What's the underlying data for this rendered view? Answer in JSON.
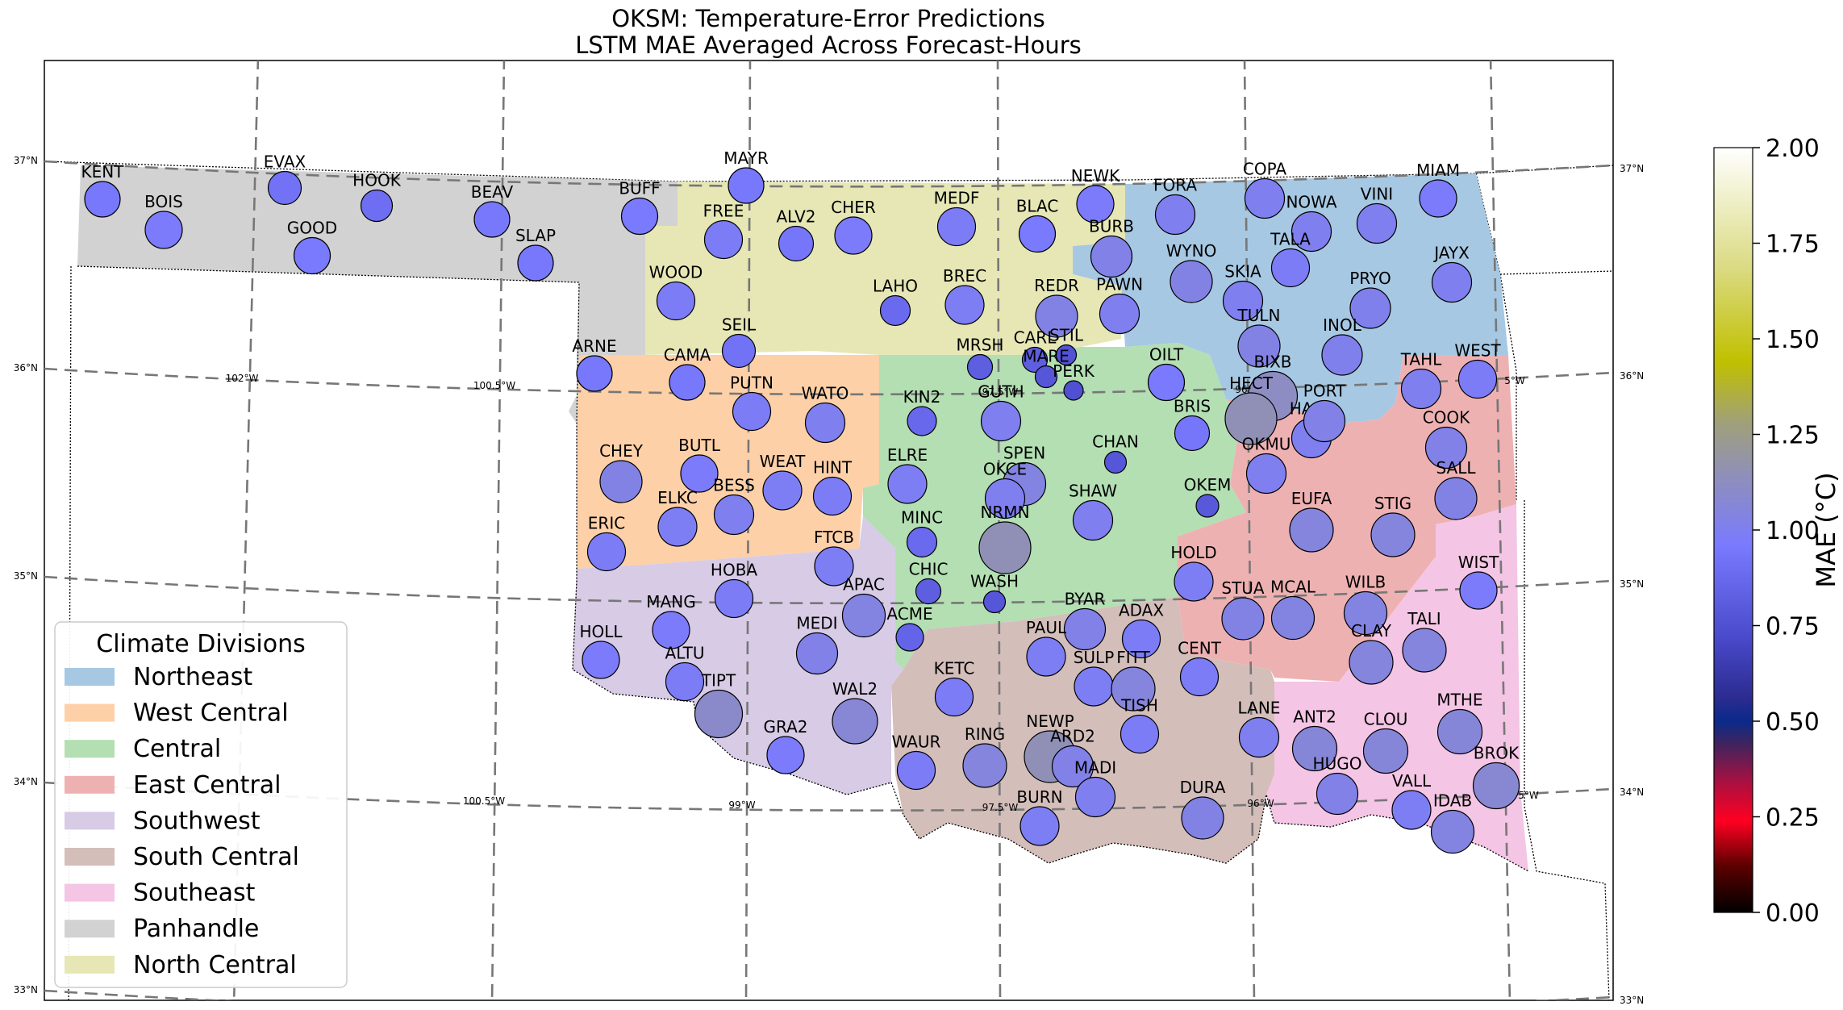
{
  "title": {
    "line1": "OKSM: Temperature-Error Predictions",
    "line2": "LSTM MAE Averaged Across Forecast-Hours"
  },
  "grid_labels": {
    "lat": [
      "37°N",
      "36°N",
      "35°N",
      "34°N",
      "33°N"
    ],
    "lon": [
      "102°W",
      "100.5°W",
      "99°W",
      "97.5°W",
      "96°W",
      "5°W"
    ]
  },
  "legend": {
    "title": "Climate Divisions",
    "items": [
      {
        "label": "Northeast",
        "color": "#a6c8e3"
      },
      {
        "label": "West Central",
        "color": "#fdd0a8"
      },
      {
        "label": "Central",
        "color": "#b3dfb3"
      },
      {
        "label": "East Central",
        "color": "#eeb1b2"
      },
      {
        "label": "Southwest",
        "color": "#d7cbe6"
      },
      {
        "label": "South Central",
        "color": "#d3beba"
      },
      {
        "label": "Southeast",
        "color": "#f4c5e4"
      },
      {
        "label": "Panhandle",
        "color": "#d2d2d2"
      },
      {
        "label": "North Central",
        "color": "#e6e7b5"
      }
    ]
  },
  "colorbar": {
    "label": "MAE (°C)",
    "min": 0,
    "max": 2,
    "ticks": [
      "0.00",
      "0.25",
      "0.50",
      "0.75",
      "1.00",
      "1.25",
      "1.50",
      "1.75",
      "2.00"
    ]
  },
  "stations": [
    {
      "name": "KENT",
      "mae": 0.95
    },
    {
      "name": "BOIS",
      "mae": 0.97
    },
    {
      "name": "EVAX",
      "mae": 0.92
    },
    {
      "name": "GOOD",
      "mae": 0.96
    },
    {
      "name": "HOOK",
      "mae": 0.9
    },
    {
      "name": "BEAV",
      "mae": 0.95
    },
    {
      "name": "SLAP",
      "mae": 0.95
    },
    {
      "name": "BUFF",
      "mae": 0.96
    },
    {
      "name": "MAYR",
      "mae": 0.95
    },
    {
      "name": "FREE",
      "mae": 0.98
    },
    {
      "name": "ALV2",
      "mae": 0.94
    },
    {
      "name": "CHER",
      "mae": 0.97
    },
    {
      "name": "MEDF",
      "mae": 0.98
    },
    {
      "name": "BLAC",
      "mae": 0.96
    },
    {
      "name": "NEWK",
      "mae": 0.97
    },
    {
      "name": "BURB",
      "mae": 1.02
    },
    {
      "name": "FORA",
      "mae": 1.0
    },
    {
      "name": "COPA",
      "mae": 1.0
    },
    {
      "name": "NOWA",
      "mae": 1.0
    },
    {
      "name": "VINI",
      "mae": 1.0
    },
    {
      "name": "MIAM",
      "mae": 0.97
    },
    {
      "name": "WOOD",
      "mae": 0.98
    },
    {
      "name": "LAHO",
      "mae": 0.88
    },
    {
      "name": "BREC",
      "mae": 0.99
    },
    {
      "name": "REDR",
      "mae": 1.03
    },
    {
      "name": "PAWN",
      "mae": 1.0
    },
    {
      "name": "WYNO",
      "mae": 1.03
    },
    {
      "name": "SKIA",
      "mae": 1.0
    },
    {
      "name": "TALA",
      "mae": 0.98
    },
    {
      "name": "PRYO",
      "mae": 1.01
    },
    {
      "name": "JAYX",
      "mae": 1.0
    },
    {
      "name": "SEIL",
      "mae": 0.92
    },
    {
      "name": "MRSH",
      "mae": 0.82
    },
    {
      "name": "CARL",
      "mae": 0.82
    },
    {
      "name": "STIL",
      "mae": 0.76
    },
    {
      "name": "MARE",
      "mae": 0.78
    },
    {
      "name": "PERK",
      "mae": 0.75
    },
    {
      "name": "TULN",
      "mae": 1.03
    },
    {
      "name": "INOL",
      "mae": 1.01
    },
    {
      "name": "ARNE",
      "mae": 0.95
    },
    {
      "name": "CAMA",
      "mae": 0.95
    },
    {
      "name": "PUTN",
      "mae": 0.98
    },
    {
      "name": "OILT",
      "mae": 0.96
    },
    {
      "name": "BIXB",
      "mae": 1.12
    },
    {
      "name": "TAHL",
      "mae": 1.0
    },
    {
      "name": "WEST",
      "mae": 0.98
    },
    {
      "name": "WATO",
      "mae": 1.0
    },
    {
      "name": "KIN2",
      "mae": 0.87
    },
    {
      "name": "GUTH",
      "mae": 1.0
    },
    {
      "name": "HECT",
      "mae": 1.15
    },
    {
      "name": "BRIS",
      "mae": 0.94
    },
    {
      "name": "HASK",
      "mae": 1.0
    },
    {
      "name": "PORT",
      "mae": 1.02
    },
    {
      "name": "CHAN",
      "mae": 0.78
    },
    {
      "name": "COOK",
      "mae": 1.02
    },
    {
      "name": "CHEY",
      "mae": 1.03
    },
    {
      "name": "BUTL",
      "mae": 0.97
    },
    {
      "name": "WEAT",
      "mae": 0.99
    },
    {
      "name": "ELRE",
      "mae": 0.99
    },
    {
      "name": "SPEN",
      "mae": 1.04
    },
    {
      "name": "OKMU",
      "mae": 1.0
    },
    {
      "name": "SALL",
      "mae": 1.03
    },
    {
      "name": "HINT",
      "mae": 0.98
    },
    {
      "name": "OKCE",
      "mae": 1.0
    },
    {
      "name": "BESS",
      "mae": 1.0
    },
    {
      "name": "ELKC",
      "mae": 0.99
    },
    {
      "name": "OKEM",
      "mae": 0.79
    },
    {
      "name": "SHAW",
      "mae": 1.0
    },
    {
      "name": "EUFA",
      "mae": 1.05
    },
    {
      "name": "STIG",
      "mae": 1.05
    },
    {
      "name": "MINC",
      "mae": 0.88
    },
    {
      "name": "NRMN",
      "mae": 1.15
    },
    {
      "name": "ERIC",
      "mae": 0.98
    },
    {
      "name": "FTCB",
      "mae": 0.99
    },
    {
      "name": "HOLD",
      "mae": 0.99
    },
    {
      "name": "CHIC",
      "mae": 0.82
    },
    {
      "name": "WASH",
      "mae": 0.78
    },
    {
      "name": "HOBA",
      "mae": 0.98
    },
    {
      "name": "WIST",
      "mae": 0.97
    },
    {
      "name": "APAC",
      "mae": 1.04
    },
    {
      "name": "BYAR",
      "mae": 1.02
    },
    {
      "name": "STUA",
      "mae": 1.03
    },
    {
      "name": "MCAL",
      "mae": 1.04
    },
    {
      "name": "WILB",
      "mae": 1.04
    },
    {
      "name": "MANG",
      "mae": 0.97
    },
    {
      "name": "ADAX",
      "mae": 0.98
    },
    {
      "name": "ACME",
      "mae": 0.85
    },
    {
      "name": "HOLL",
      "mae": 0.97
    },
    {
      "name": "MEDI",
      "mae": 1.02
    },
    {
      "name": "PAUL",
      "mae": 0.99
    },
    {
      "name": "TALI",
      "mae": 1.05
    },
    {
      "name": "CLAY",
      "mae": 1.05
    },
    {
      "name": "CENT",
      "mae": 0.98
    },
    {
      "name": "ALTU",
      "mae": 0.98
    },
    {
      "name": "SULP",
      "mae": 0.99
    },
    {
      "name": "FITT",
      "mae": 1.05
    },
    {
      "name": "KETC",
      "mae": 0.98
    },
    {
      "name": "TIPT",
      "mae": 1.1
    },
    {
      "name": "WAL2",
      "mae": 1.07
    },
    {
      "name": "TISH",
      "mae": 0.98
    },
    {
      "name": "LANE",
      "mae": 1.0
    },
    {
      "name": "ANT2",
      "mae": 1.06
    },
    {
      "name": "CLOU",
      "mae": 1.06
    },
    {
      "name": "MTHE",
      "mae": 1.06
    },
    {
      "name": "GRA2",
      "mae": 0.97
    },
    {
      "name": "WAUR",
      "mae": 0.98
    },
    {
      "name": "RING",
      "mae": 1.05
    },
    {
      "name": "NEWP",
      "mae": 1.15
    },
    {
      "name": "ARD2",
      "mae": 1.02
    },
    {
      "name": "MADI",
      "mae": 1.0
    },
    {
      "name": "HUGO",
      "mae": 1.02
    },
    {
      "name": "BROK",
      "mae": 1.08
    },
    {
      "name": "DURA",
      "mae": 1.03
    },
    {
      "name": "VALL",
      "mae": 0.99
    },
    {
      "name": "BURN",
      "mae": 0.99
    },
    {
      "name": "IDAB",
      "mae": 1.04
    }
  ]
}
